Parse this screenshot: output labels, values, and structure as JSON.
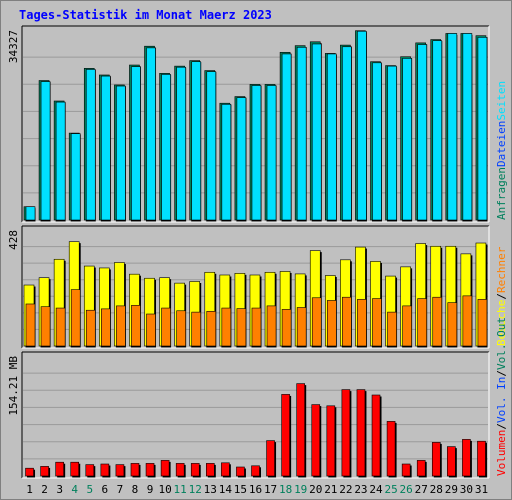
{
  "chart_data": {
    "title": "Tages-Statistik im Monat Maerz 2023",
    "type": "bar",
    "categories": [
      "1",
      "2",
      "3",
      "4",
      "5",
      "6",
      "7",
      "8",
      "9",
      "10",
      "11",
      "12",
      "13",
      "14",
      "15",
      "16",
      "17",
      "18",
      "19",
      "20",
      "21",
      "22",
      "23",
      "24",
      "25",
      "26",
      "27",
      "28",
      "29",
      "30",
      "31"
    ],
    "weekend_days": [
      "4",
      "5",
      "11",
      "12",
      "18",
      "19",
      "25",
      "26"
    ],
    "colors": {
      "background": "#c0c0c0",
      "plot": "#c0c0c0",
      "title": "#0000ff",
      "weekday_label": "#000000",
      "weekend_label": "#00805c",
      "anfragen": "#00805c",
      "dateien": "#0040ff",
      "seiten": "#00e0ff",
      "besuche": "#ffff00",
      "rechner": "#ff8000",
      "vol_in": "#0040ff",
      "vol_out": "#00805c",
      "volumen": "#ff0000"
    },
    "panels": [
      {
        "id": "requests",
        "y_label": "34327",
        "ylim": [
          0,
          34327
        ],
        "right_legend": [
          {
            "text": "Anfragen",
            "color": "#00805c"
          },
          {
            "text": "Dateien",
            "color": "#0040ff"
          },
          {
            "text": "Seiten",
            "color": "#00e0ff"
          }
        ],
        "series": [
          {
            "name": "Anfragen",
            "color": "#00805c",
            "values": [
              2400,
              25200,
              21500,
              15700,
              27400,
              26200,
              24400,
              28000,
              31400,
              26500,
              27800,
              28800,
              27000,
              21100,
              22300,
              24500,
              24500,
              30300,
              31500,
              32200,
              30100,
              31600,
              34200,
              28600,
              27900,
              29500,
              32000,
              32600,
              33700,
              33700,
              33300
            ]
          },
          {
            "name": "Seiten",
            "color": "#00e0ff",
            "values": [
              2400,
              25000,
              21300,
              15600,
              27200,
              26000,
              24200,
              27700,
              31100,
              26300,
              27600,
              28600,
              26800,
              20900,
              22100,
              24300,
              24300,
              30000,
              31200,
              31800,
              30000,
              31300,
              34100,
              28400,
              27800,
              29200,
              31700,
              32400,
              33700,
              33700,
              33000
            ]
          }
        ]
      },
      {
        "id": "visits",
        "y_label": "428",
        "ylim": [
          0,
          428
        ],
        "right_legend": [
          {
            "text": "Besuche",
            "color": "#ffff00"
          },
          {
            "text": "/",
            "color": "#000000"
          },
          {
            "text": "Rechner",
            "color": "#ff8000"
          }
        ],
        "series": [
          {
            "name": "Besuche",
            "color": "#ffff00",
            "values": [
              225,
              252,
              320,
              385,
              295,
              288,
              308,
              265,
              250,
              252,
              232,
              238,
              272,
              262,
              268,
              262,
              272,
              275,
              266,
              352,
              260,
              318,
              365,
              312,
              258,
              292,
              378,
              368,
              368,
              340,
              380
            ]
          },
          {
            "name": "Rechner",
            "color": "#ff8000",
            "values": [
              155,
              145,
              140,
              208,
              132,
              137,
              148,
              150,
              118,
              140,
              130,
              125,
              128,
              140,
              138,
              140,
              148,
              135,
              142,
              178,
              168,
              180,
              172,
              175,
              125,
              148,
              175,
              180,
              160,
              185,
              172
            ]
          }
        ]
      },
      {
        "id": "volume",
        "y_label": "154.21 MB",
        "ylim": [
          0,
          200
        ],
        "right_legend": [
          {
            "text": "Volumen",
            "color": "#ff0000"
          },
          {
            "text": "/",
            "color": "#000000"
          },
          {
            "text": "Vol. In",
            "color": "#0040ff"
          },
          {
            "text": "/",
            "color": "#000000"
          },
          {
            "text": "Vol. Out",
            "color": "#00805c"
          }
        ],
        "series": [
          {
            "name": "Volumen",
            "color": "#ff0000",
            "values": [
              13,
              16,
              23,
              23,
              19,
              20,
              19,
              21,
              21,
              26,
              21,
              21,
              21,
              22,
              15,
              17,
              59,
              136,
              154,
              119,
              117,
              144,
              144,
              135,
              91,
              20,
              26,
              56,
              49,
              61,
              58
            ]
          }
        ]
      }
    ],
    "grid": true
  }
}
